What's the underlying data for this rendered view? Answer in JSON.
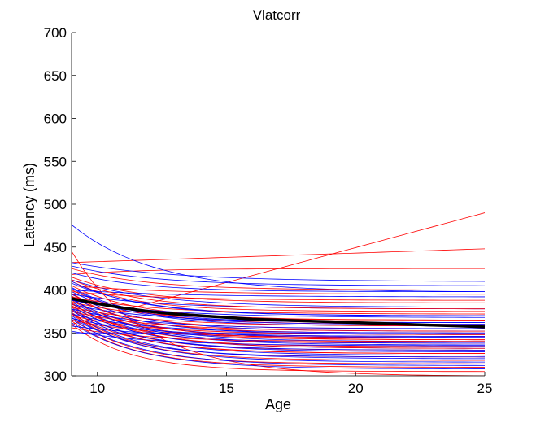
{
  "chart_data": {
    "type": "line",
    "title": "Vlatcorr",
    "xlabel": "Age",
    "ylabel": "Latency (ms)",
    "xlim": [
      9,
      25
    ],
    "ylim": [
      300,
      700
    ],
    "xticks": [
      10,
      15,
      20,
      25
    ],
    "yticks": [
      300,
      350,
      400,
      450,
      500,
      550,
      600,
      650,
      700
    ],
    "grid": false,
    "colors": {
      "group_a": "#ff0000",
      "group_b": "#0000ff",
      "mean": "#000000"
    },
    "mean_curve": {
      "x": [
        9,
        10,
        11,
        12,
        13,
        14,
        15,
        16,
        17,
        18,
        19,
        20,
        21,
        22,
        23,
        24,
        25
      ],
      "y": [
        390,
        384,
        379,
        375,
        372,
        370,
        368,
        366,
        365,
        364,
        363,
        362,
        361,
        360,
        359,
        358,
        357
      ]
    },
    "individual_curves": [
      {
        "c": "group_a",
        "y0": 360,
        "y1": 490,
        "k": 0.0
      },
      {
        "c": "group_a",
        "y0": 432,
        "y1": 448,
        "k": 0.0
      },
      {
        "c": "group_a",
        "y0": 445,
        "y1": 300,
        "k": 0.25
      },
      {
        "c": "group_a",
        "y0": 418,
        "y1": 425,
        "k": 0.3
      },
      {
        "c": "group_b",
        "y0": 476,
        "y1": 398,
        "k": 0.2
      },
      {
        "c": "group_b",
        "y0": 432,
        "y1": 410,
        "k": 0.1
      },
      {
        "c": "group_b",
        "y0": 428,
        "y1": 405,
        "k": 0.2
      },
      {
        "c": "group_a",
        "y0": 425,
        "y1": 400,
        "k": 0.25
      },
      {
        "c": "group_b",
        "y0": 420,
        "y1": 398,
        "k": 0.3
      },
      {
        "c": "group_a",
        "y0": 415,
        "y1": 385,
        "k": 0.3
      },
      {
        "c": "group_b",
        "y0": 412,
        "y1": 380,
        "k": 0.2
      },
      {
        "c": "group_a",
        "y0": 410,
        "y1": 375,
        "k": 0.35
      },
      {
        "c": "group_b",
        "y0": 408,
        "y1": 370,
        "k": 0.25
      },
      {
        "c": "group_a",
        "y0": 405,
        "y1": 365,
        "k": 0.3
      },
      {
        "c": "group_b",
        "y0": 403,
        "y1": 362,
        "k": 0.35
      },
      {
        "c": "group_a",
        "y0": 400,
        "y1": 360,
        "k": 0.3
      },
      {
        "c": "group_b",
        "y0": 398,
        "y1": 358,
        "k": 0.3
      },
      {
        "c": "group_a",
        "y0": 396,
        "y1": 355,
        "k": 0.4
      },
      {
        "c": "group_b",
        "y0": 395,
        "y1": 352,
        "k": 0.3
      },
      {
        "c": "group_a",
        "y0": 393,
        "y1": 350,
        "k": 0.35
      },
      {
        "c": "group_b",
        "y0": 392,
        "y1": 348,
        "k": 0.3
      },
      {
        "c": "group_a",
        "y0": 390,
        "y1": 346,
        "k": 0.4
      },
      {
        "c": "group_b",
        "y0": 389,
        "y1": 344,
        "k": 0.3
      },
      {
        "c": "group_a",
        "y0": 388,
        "y1": 342,
        "k": 0.35
      },
      {
        "c": "group_b",
        "y0": 386,
        "y1": 340,
        "k": 0.3
      },
      {
        "c": "group_a",
        "y0": 385,
        "y1": 338,
        "k": 0.4
      },
      {
        "c": "group_b",
        "y0": 384,
        "y1": 336,
        "k": 0.3
      },
      {
        "c": "group_a",
        "y0": 382,
        "y1": 334,
        "k": 0.35
      },
      {
        "c": "group_b",
        "y0": 381,
        "y1": 332,
        "k": 0.3
      },
      {
        "c": "group_a",
        "y0": 380,
        "y1": 330,
        "k": 0.4
      },
      {
        "c": "group_b",
        "y0": 378,
        "y1": 328,
        "k": 0.3
      },
      {
        "c": "group_a",
        "y0": 377,
        "y1": 326,
        "k": 0.35
      },
      {
        "c": "group_b",
        "y0": 376,
        "y1": 324,
        "k": 0.3
      },
      {
        "c": "group_a",
        "y0": 374,
        "y1": 322,
        "k": 0.4
      },
      {
        "c": "group_b",
        "y0": 373,
        "y1": 320,
        "k": 0.3
      },
      {
        "c": "group_a",
        "y0": 372,
        "y1": 318,
        "k": 0.35
      },
      {
        "c": "group_b",
        "y0": 370,
        "y1": 316,
        "k": 0.3
      },
      {
        "c": "group_a",
        "y0": 368,
        "y1": 314,
        "k": 0.4
      },
      {
        "c": "group_b",
        "y0": 366,
        "y1": 312,
        "k": 0.3
      },
      {
        "c": "group_a",
        "y0": 364,
        "y1": 310,
        "k": 0.35
      },
      {
        "c": "group_b",
        "y0": 362,
        "y1": 308,
        "k": 0.3
      },
      {
        "c": "group_a",
        "y0": 360,
        "y1": 305,
        "k": 0.4
      },
      {
        "c": "group_b",
        "y0": 358,
        "y1": 345,
        "k": 0.2
      },
      {
        "c": "group_a",
        "y0": 356,
        "y1": 340,
        "k": 0.25
      },
      {
        "c": "group_b",
        "y0": 352,
        "y1": 335,
        "k": 0.2
      },
      {
        "c": "group_b",
        "y0": 350,
        "y1": 350,
        "k": 0.0
      },
      {
        "c": "group_a",
        "y0": 405,
        "y1": 395,
        "k": 0.1
      },
      {
        "c": "group_b",
        "y0": 400,
        "y1": 392,
        "k": 0.1
      },
      {
        "c": "group_a",
        "y0": 398,
        "y1": 388,
        "k": 0.15
      },
      {
        "c": "group_b",
        "y0": 395,
        "y1": 378,
        "k": 0.15
      },
      {
        "c": "group_a",
        "y0": 392,
        "y1": 372,
        "k": 0.2
      },
      {
        "c": "group_b",
        "y0": 388,
        "y1": 368,
        "k": 0.15
      },
      {
        "c": "group_a",
        "y0": 386,
        "y1": 365,
        "k": 0.25
      },
      {
        "c": "group_b",
        "y0": 383,
        "y1": 362,
        "k": 0.2
      },
      {
        "c": "group_a",
        "y0": 380,
        "y1": 358,
        "k": 0.2
      },
      {
        "c": "group_b",
        "y0": 378,
        "y1": 355,
        "k": 0.25
      },
      {
        "c": "group_a",
        "y0": 375,
        "y1": 352,
        "k": 0.2
      },
      {
        "c": "group_b",
        "y0": 372,
        "y1": 350,
        "k": 0.25
      },
      {
        "c": "group_a",
        "y0": 370,
        "y1": 348,
        "k": 0.2
      },
      {
        "c": "group_b",
        "y0": 367,
        "y1": 346,
        "k": 0.25
      },
      {
        "c": "group_a",
        "y0": 365,
        "y1": 344,
        "k": 0.2
      },
      {
        "c": "group_b",
        "y0": 410,
        "y1": 370,
        "k": 0.3
      },
      {
        "c": "group_a",
        "y0": 412,
        "y1": 378,
        "k": 0.3
      },
      {
        "c": "group_b",
        "y0": 402,
        "y1": 360,
        "k": 0.35
      },
      {
        "c": "group_a",
        "y0": 396,
        "y1": 342,
        "k": 0.3
      },
      {
        "c": "group_b",
        "y0": 390,
        "y1": 338,
        "k": 0.35
      },
      {
        "c": "group_a",
        "y0": 384,
        "y1": 332,
        "k": 0.3
      },
      {
        "c": "group_b",
        "y0": 378,
        "y1": 330,
        "k": 0.35
      },
      {
        "c": "group_a",
        "y0": 372,
        "y1": 326,
        "k": 0.3
      },
      {
        "c": "group_b",
        "y0": 368,
        "y1": 322,
        "k": 0.35
      }
    ]
  }
}
